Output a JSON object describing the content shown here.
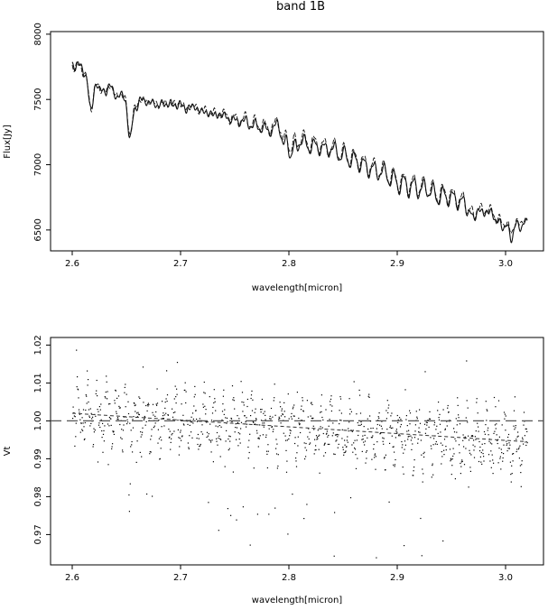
{
  "figure": {
    "title": "band 1B"
  },
  "chart_data": [
    {
      "type": "line",
      "xlabel": "wavelength[micron]",
      "ylabel": "Flux[Jy]",
      "xlim": [
        2.58,
        3.035
      ],
      "ylim": [
        6340,
        8020
      ],
      "xticks": [
        "2.6",
        "2.7",
        "2.8",
        "2.9",
        "3.0"
      ],
      "yticks": [
        "6500",
        "7000",
        "7500",
        "8000"
      ],
      "series": [
        {
          "style": "solid",
          "continuum": [
            [
              2.6,
              7780
            ],
            [
              2.65,
              7560
            ],
            [
              2.7,
              7520
            ],
            [
              2.75,
              7400
            ],
            [
              2.8,
              7270
            ],
            [
              2.85,
              7140
            ],
            [
              2.9,
              6940
            ],
            [
              2.95,
              6810
            ],
            [
              3.0,
              6640
            ],
            [
              3.02,
              6600
            ]
          ],
          "lines": [
            [
              2.617,
              300
            ],
            [
              2.625,
              120
            ],
            [
              2.632,
              90
            ],
            [
              2.642,
              110
            ],
            [
              2.653,
              380
            ],
            [
              2.66,
              140
            ],
            [
              2.67,
              110
            ],
            [
              2.679,
              130
            ],
            [
              2.688,
              110
            ],
            [
              2.697,
              110
            ],
            [
              2.706,
              120
            ],
            [
              2.716,
              100
            ],
            [
              2.725,
              110
            ],
            [
              2.734,
              100
            ],
            [
              2.744,
              100
            ],
            [
              2.753,
              100
            ],
            [
              2.763,
              90
            ],
            [
              2.772,
              90
            ],
            [
              2.781,
              90
            ],
            [
              2.795,
              100
            ],
            [
              2.801,
              200
            ],
            [
              2.808,
              150
            ],
            [
              2.818,
              130
            ],
            [
              2.827,
              110
            ],
            [
              2.836,
              100
            ],
            [
              2.846,
              110
            ],
            [
              2.855,
              120
            ],
            [
              2.864,
              110
            ],
            [
              2.873,
              120
            ],
            [
              2.882,
              110
            ],
            [
              2.892,
              110
            ],
            [
              2.901,
              130
            ],
            [
              2.91,
              130
            ],
            [
              2.919,
              120
            ],
            [
              2.928,
              100
            ],
            [
              2.937,
              140
            ],
            [
              2.946,
              110
            ],
            [
              2.955,
              110
            ],
            [
              2.964,
              130
            ],
            [
              2.971,
              190
            ],
            [
              2.98,
              120
            ],
            [
              2.99,
              130
            ],
            [
              2.998,
              180
            ],
            [
              3.006,
              230
            ],
            [
              3.015,
              120
            ]
          ]
        },
        {
          "style": "dashed",
          "continuum": [
            [
              2.6,
              7770
            ],
            [
              2.65,
              7560
            ],
            [
              2.7,
              7520
            ],
            [
              2.75,
              7410
            ],
            [
              2.8,
              7290
            ],
            [
              2.85,
              7150
            ],
            [
              2.9,
              6950
            ],
            [
              2.95,
              6820
            ],
            [
              3.0,
              6650
            ],
            [
              3.02,
              6620
            ]
          ],
          "lines": [
            [
              2.617,
              280
            ],
            [
              2.625,
              110
            ],
            [
              2.632,
              85
            ],
            [
              2.642,
              100
            ],
            [
              2.653,
              350
            ],
            [
              2.66,
              130
            ],
            [
              2.67,
              100
            ],
            [
              2.679,
              120
            ],
            [
              2.688,
              105
            ],
            [
              2.697,
              100
            ],
            [
              2.706,
              115
            ],
            [
              2.716,
              95
            ],
            [
              2.725,
              100
            ],
            [
              2.734,
              95
            ],
            [
              2.744,
              95
            ],
            [
              2.753,
              95
            ],
            [
              2.763,
              85
            ],
            [
              2.772,
              85
            ],
            [
              2.781,
              85
            ],
            [
              2.795,
              90
            ],
            [
              2.801,
              170
            ],
            [
              2.808,
              130
            ],
            [
              2.818,
              120
            ],
            [
              2.827,
              100
            ],
            [
              2.836,
              95
            ],
            [
              2.846,
              100
            ],
            [
              2.855,
              110
            ],
            [
              2.864,
              100
            ],
            [
              2.873,
              110
            ],
            [
              2.882,
              100
            ],
            [
              2.892,
              100
            ],
            [
              2.901,
              120
            ],
            [
              2.91,
              120
            ],
            [
              2.919,
              110
            ],
            [
              2.928,
              95
            ],
            [
              2.937,
              120
            ],
            [
              2.946,
              100
            ],
            [
              2.955,
              100
            ],
            [
              2.964,
              120
            ],
            [
              2.971,
              170
            ],
            [
              2.98,
              110
            ],
            [
              2.99,
              120
            ],
            [
              2.998,
              160
            ],
            [
              3.006,
              200
            ],
            [
              3.015,
              110
            ]
          ]
        }
      ],
      "x_range": [
        2.6,
        3.02
      ],
      "grid": false,
      "legend": "none"
    },
    {
      "type": "scatter",
      "xlabel": "wavelength[micron]",
      "ylabel": "Vt",
      "xlim": [
        2.58,
        3.035
      ],
      "ylim": [
        0.962,
        1.022
      ],
      "xticks": [
        "2.6",
        "2.7",
        "2.8",
        "2.9",
        "3.0"
      ],
      "yticks": [
        "0.97",
        "0.98",
        "0.99",
        "1.00",
        "1.01",
        "1.02"
      ],
      "points_x_range": [
        2.6,
        3.02
      ],
      "scatter_trend": [
        [
          2.6,
          1.002
        ],
        [
          2.7,
          1.0
        ],
        [
          2.8,
          0.998
        ],
        [
          2.9,
          0.996
        ],
        [
          3.02,
          0.994
        ]
      ],
      "reference_line": {
        "y": 1.0,
        "style": "long-dash"
      },
      "trend_line": {
        "style": "dashed",
        "points": [
          [
            2.6,
            1.002
          ],
          [
            3.02,
            0.9945
          ]
        ]
      },
      "grid": false,
      "legend": "none"
    }
  ]
}
